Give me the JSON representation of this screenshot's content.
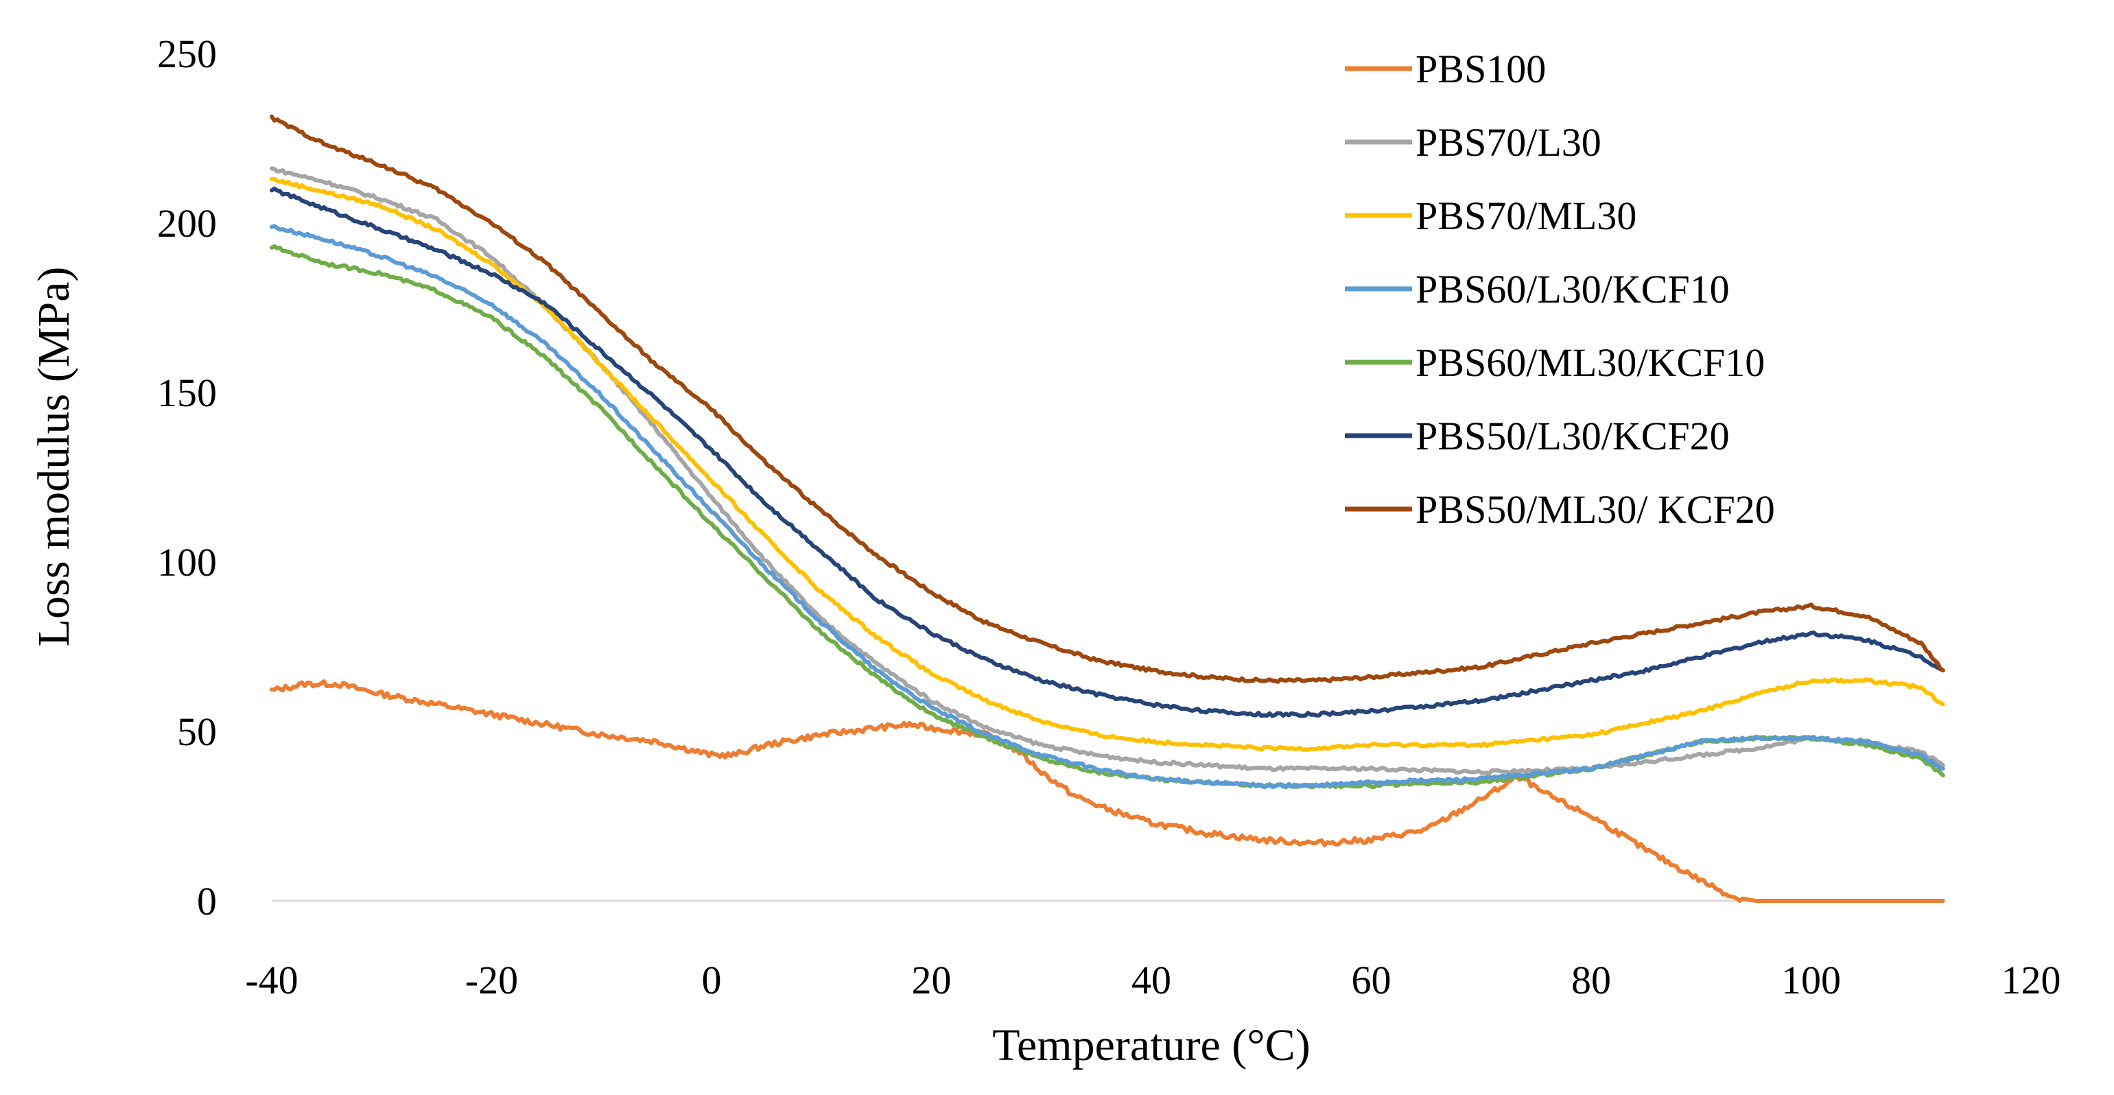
{
  "chart_data": {
    "type": "line",
    "title": "",
    "xlabel": "Temperature (°C)",
    "ylabel": "Loss modulus (MPa)",
    "xlim": [
      -40,
      120
    ],
    "ylim": [
      0,
      250
    ],
    "xticks": [
      -40,
      -20,
      0,
      20,
      40,
      60,
      80,
      100,
      120
    ],
    "yticks": [
      0,
      50,
      100,
      150,
      200,
      250
    ],
    "grid": false,
    "legend_position": "top-right",
    "series": [
      {
        "name": "PBS100",
        "color": "#ED7D31",
        "points": [
          [
            -40,
            62
          ],
          [
            -37,
            64
          ],
          [
            -34,
            64
          ],
          [
            -30,
            61
          ],
          [
            -25,
            58
          ],
          [
            -20,
            55
          ],
          [
            -15,
            52
          ],
          [
            -10,
            49
          ],
          [
            -5,
            47
          ],
          [
            0,
            43
          ],
          [
            2,
            43
          ],
          [
            5,
            46
          ],
          [
            10,
            49
          ],
          [
            15,
            51
          ],
          [
            18,
            52
          ],
          [
            20,
            51
          ],
          [
            25,
            49
          ],
          [
            28,
            44
          ],
          [
            30,
            38
          ],
          [
            33,
            31
          ],
          [
            36,
            27
          ],
          [
            40,
            23
          ],
          [
            45,
            20
          ],
          [
            50,
            18
          ],
          [
            55,
            17
          ],
          [
            60,
            18
          ],
          [
            65,
            21
          ],
          [
            70,
            30
          ],
          [
            73,
            36
          ],
          [
            74,
            36
          ],
          [
            75,
            33
          ],
          [
            78,
            28
          ],
          [
            80,
            25
          ],
          [
            85,
            15
          ],
          [
            90,
            6
          ],
          [
            93,
            1
          ],
          [
            95,
            0
          ],
          [
            112,
            0
          ]
        ]
      },
      {
        "name": "PBS70/L30",
        "color": "#A5A5A5",
        "points": [
          [
            -40,
            216
          ],
          [
            -35,
            212
          ],
          [
            -30,
            207
          ],
          [
            -25,
            201
          ],
          [
            -20,
            190
          ],
          [
            -15,
            175
          ],
          [
            -10,
            158
          ],
          [
            -5,
            139
          ],
          [
            0,
            119
          ],
          [
            5,
            100
          ],
          [
            10,
            83
          ],
          [
            15,
            70
          ],
          [
            20,
            59
          ],
          [
            25,
            51
          ],
          [
            30,
            46
          ],
          [
            35,
            43
          ],
          [
            40,
            41
          ],
          [
            45,
            40
          ],
          [
            50,
            39
          ],
          [
            55,
            39
          ],
          [
            60,
            39
          ],
          [
            70,
            38
          ],
          [
            80,
            39
          ],
          [
            90,
            43
          ],
          [
            95,
            45
          ],
          [
            100,
            48
          ],
          [
            105,
            47
          ],
          [
            110,
            44
          ],
          [
            112,
            40
          ]
        ]
      },
      {
        "name": "PBS70/ML30",
        "color": "#FFC000",
        "points": [
          [
            -40,
            213
          ],
          [
            -35,
            209
          ],
          [
            -30,
            205
          ],
          [
            -25,
            198
          ],
          [
            -20,
            188
          ],
          [
            -15,
            175
          ],
          [
            -10,
            158
          ],
          [
            -5,
            141
          ],
          [
            0,
            124
          ],
          [
            5,
            107
          ],
          [
            10,
            91
          ],
          [
            15,
            78
          ],
          [
            20,
            67
          ],
          [
            25,
            59
          ],
          [
            30,
            53
          ],
          [
            35,
            49
          ],
          [
            40,
            47
          ],
          [
            45,
            46
          ],
          [
            50,
            45
          ],
          [
            55,
            45
          ],
          [
            60,
            46
          ],
          [
            70,
            46
          ],
          [
            80,
            49
          ],
          [
            90,
            56
          ],
          [
            95,
            61
          ],
          [
            100,
            65
          ],
          [
            105,
            65
          ],
          [
            110,
            63
          ],
          [
            112,
            58
          ]
        ]
      },
      {
        "name": "PBS60/L30/KCF10",
        "color": "#5B9BD5",
        "points": [
          [
            -40,
            199
          ],
          [
            -35,
            195
          ],
          [
            -30,
            190
          ],
          [
            -25,
            184
          ],
          [
            -20,
            176
          ],
          [
            -15,
            164
          ],
          [
            -10,
            149
          ],
          [
            -5,
            132
          ],
          [
            0,
            115
          ],
          [
            5,
            98
          ],
          [
            10,
            82
          ],
          [
            15,
            68
          ],
          [
            20,
            57
          ],
          [
            25,
            49
          ],
          [
            30,
            43
          ],
          [
            35,
            39
          ],
          [
            40,
            36
          ],
          [
            45,
            35
          ],
          [
            50,
            34
          ],
          [
            55,
            34
          ],
          [
            60,
            35
          ],
          [
            70,
            36
          ],
          [
            80,
            39
          ],
          [
            85,
            43
          ],
          [
            90,
            47
          ],
          [
            95,
            48
          ],
          [
            100,
            48
          ],
          [
            105,
            47
          ],
          [
            110,
            43
          ],
          [
            112,
            39
          ]
        ]
      },
      {
        "name": "PBS60/ML30/KCF10",
        "color": "#70AD47",
        "points": [
          [
            -40,
            193
          ],
          [
            -35,
            188
          ],
          [
            -30,
            185
          ],
          [
            -25,
            180
          ],
          [
            -20,
            172
          ],
          [
            -15,
            160
          ],
          [
            -10,
            145
          ],
          [
            -5,
            128
          ],
          [
            0,
            111
          ],
          [
            5,
            95
          ],
          [
            10,
            79
          ],
          [
            15,
            66
          ],
          [
            20,
            55
          ],
          [
            25,
            48
          ],
          [
            30,
            42
          ],
          [
            35,
            38
          ],
          [
            40,
            36
          ],
          [
            45,
            35
          ],
          [
            50,
            34
          ],
          [
            55,
            34
          ],
          [
            60,
            34
          ],
          [
            70,
            35
          ],
          [
            80,
            39
          ],
          [
            85,
            43
          ],
          [
            90,
            47
          ],
          [
            95,
            48
          ],
          [
            100,
            48
          ],
          [
            105,
            46
          ],
          [
            110,
            42
          ],
          [
            112,
            37
          ]
        ]
      },
      {
        "name": "PBS50/L30/KCF20",
        "color": "#264478",
        "points": [
          [
            -40,
            210
          ],
          [
            -35,
            204
          ],
          [
            -30,
            198
          ],
          [
            -25,
            192
          ],
          [
            -20,
            185
          ],
          [
            -15,
            176
          ],
          [
            -10,
            162
          ],
          [
            -5,
            148
          ],
          [
            0,
            133
          ],
          [
            5,
            117
          ],
          [
            10,
            103
          ],
          [
            15,
            89
          ],
          [
            20,
            79
          ],
          [
            25,
            71
          ],
          [
            30,
            65
          ],
          [
            35,
            61
          ],
          [
            40,
            58
          ],
          [
            45,
            56
          ],
          [
            50,
            55
          ],
          [
            55,
            55
          ],
          [
            60,
            56
          ],
          [
            70,
            59
          ],
          [
            80,
            65
          ],
          [
            85,
            68
          ],
          [
            90,
            72
          ],
          [
            95,
            76
          ],
          [
            100,
            79
          ],
          [
            105,
            77
          ],
          [
            110,
            72
          ],
          [
            112,
            68
          ]
        ]
      },
      {
        "name": "PBS50/ML30/ KCF20",
        "color": "#9E480E",
        "points": [
          [
            -40,
            231
          ],
          [
            -35,
            223
          ],
          [
            -30,
            217
          ],
          [
            -25,
            210
          ],
          [
            -20,
            200
          ],
          [
            -15,
            188
          ],
          [
            -10,
            173
          ],
          [
            -5,
            158
          ],
          [
            0,
            145
          ],
          [
            5,
            129
          ],
          [
            10,
            115
          ],
          [
            15,
            102
          ],
          [
            20,
            91
          ],
          [
            25,
            82
          ],
          [
            30,
            76
          ],
          [
            35,
            71
          ],
          [
            40,
            68
          ],
          [
            45,
            66
          ],
          [
            50,
            65
          ],
          [
            55,
            65
          ],
          [
            60,
            66
          ],
          [
            70,
            69
          ],
          [
            80,
            76
          ],
          [
            85,
            79
          ],
          [
            90,
            82
          ],
          [
            95,
            85
          ],
          [
            100,
            87
          ],
          [
            105,
            84
          ],
          [
            110,
            76
          ],
          [
            112,
            68
          ]
        ]
      }
    ]
  }
}
